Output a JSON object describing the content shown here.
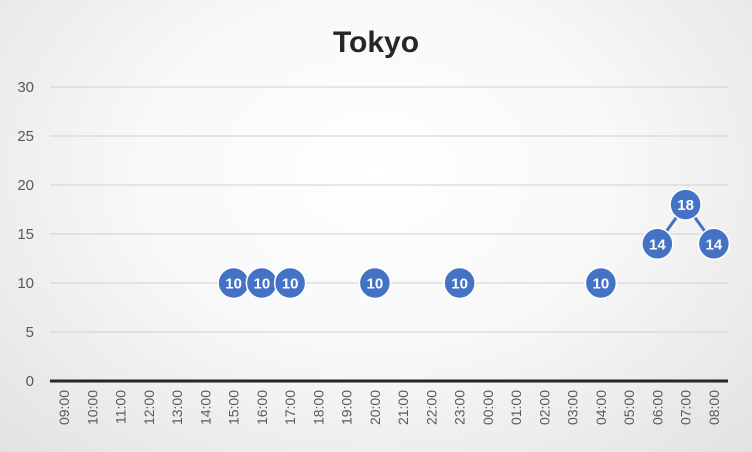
{
  "chart_data": {
    "type": "line",
    "title": "Tokyo",
    "xlabel": "",
    "ylabel": "",
    "ylim": [
      0,
      30
    ],
    "yticks": [
      0,
      5,
      10,
      15,
      20,
      25,
      30
    ],
    "categories": [
      "09:00",
      "10:00",
      "11:00",
      "12:00",
      "13:00",
      "14:00",
      "15:00",
      "16:00",
      "17:00",
      "18:00",
      "19:00",
      "20:00",
      "21:00",
      "22:00",
      "23:00",
      "00:00",
      "01:00",
      "02:00",
      "03:00",
      "04:00",
      "05:00",
      "06:00",
      "07:00",
      "08:00"
    ],
    "series": [
      {
        "values": [
          null,
          null,
          null,
          null,
          null,
          null,
          10,
          10,
          10,
          null,
          null,
          10,
          null,
          null,
          10,
          null,
          null,
          null,
          null,
          10,
          null,
          14,
          18,
          14
        ],
        "color": "#4472c4"
      }
    ],
    "grid": true,
    "legend": "none",
    "data_labels": true
  }
}
